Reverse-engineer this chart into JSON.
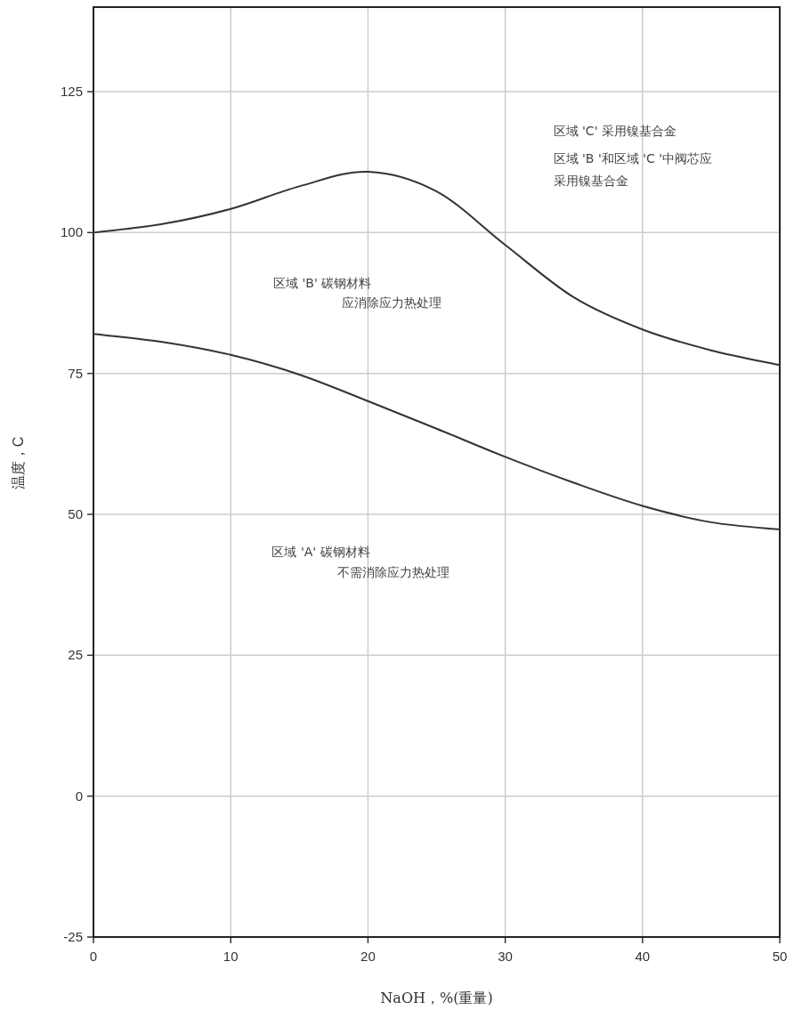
{
  "chart_data": {
    "type": "line",
    "xlabel": "NaOH，%(重量)",
    "ylabel": "温度，C",
    "x": [
      0,
      5,
      10,
      15,
      20,
      25,
      30,
      35,
      40,
      45,
      50
    ],
    "series": [
      {
        "color": "#333333",
        "values": [
          100,
          101.5,
          104.2,
          108.2,
          110.8,
          107.3,
          97.8,
          88.5,
          82.8,
          79.1,
          76.5
        ]
      },
      {
        "color": "#333333",
        "values": [
          82,
          80.6,
          78.3,
          74.8,
          70.1,
          65.2,
          60.2,
          55.6,
          51.5,
          48.6,
          47.3
        ]
      }
    ],
    "xlim": [
      0,
      50
    ],
    "xticks": [
      0,
      10,
      20,
      30,
      40,
      50
    ],
    "ylim": [
      -25,
      140
    ],
    "yticks": [
      -25,
      0,
      25,
      50,
      75,
      100,
      125
    ],
    "grid": true,
    "marker": "none",
    "line_style": "solid",
    "annotations": [
      "区域 'C' 采用镍基合金",
      "区域 'B '和区域 'C '中阀芯应",
      "采用镍基合金",
      "区域 'B' 碳钢材料",
      "应消除应力热处理",
      "区域 'A' 碳钢材料",
      "不需消除应力热处理"
    ]
  }
}
